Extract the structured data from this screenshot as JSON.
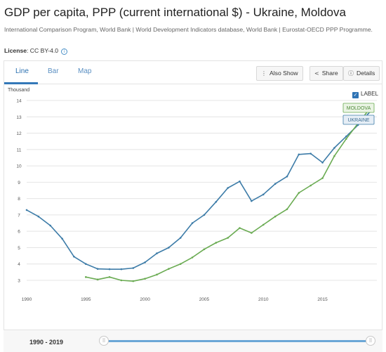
{
  "header": {
    "title": "GDP per capita, PPP (current international $) - Ukraine, Moldova",
    "source": "International Comparison Program, World Bank | World Development Indicators database, World Bank | Eurostat-OECD PPP Programme.",
    "license_label": "License",
    "license_value": ": CC BY-4.0",
    "info_icon": "i"
  },
  "tabs": [
    {
      "label": "Line",
      "active": true
    },
    {
      "label": "Bar",
      "active": false
    },
    {
      "label": "Map",
      "active": false
    }
  ],
  "toolbar": {
    "also_show": "Also Show",
    "also_show_icon": "⋮",
    "share": "Share",
    "share_icon": "<",
    "details": "Details",
    "details_icon": "ⓘ"
  },
  "chart_controls": {
    "units": "Thousand",
    "label_toggle": "LABEL",
    "label_checked": true,
    "check_icon": "✓"
  },
  "colors": {
    "ukraine": "#3d7ca8",
    "moldova": "#6aab52",
    "grid": "#e4e4e4",
    "accent": "#2f74b5"
  },
  "chart_data": {
    "type": "line",
    "xlabel": "",
    "ylabel": "Thousand",
    "xlim": [
      1990,
      2019
    ],
    "ylim": [
      2.5,
      14.2
    ],
    "yticks": [
      3,
      4,
      5,
      6,
      7,
      8,
      9,
      10,
      11,
      12,
      13,
      14
    ],
    "xticks": [
      1990,
      1995,
      2000,
      2005,
      2010,
      2015
    ],
    "grid": true,
    "series": [
      {
        "name": "UKRAINE",
        "color": "#3d7ca8",
        "x": [
          1990,
          1991,
          1992,
          1993,
          1994,
          1995,
          1996,
          1997,
          1998,
          1999,
          2000,
          2001,
          2002,
          2003,
          2004,
          2005,
          2006,
          2007,
          2008,
          2009,
          2010,
          2011,
          2012,
          2013,
          2014,
          2015,
          2016,
          2017,
          2018,
          2019
        ],
        "values": [
          7.3,
          6.9,
          6.35,
          5.55,
          4.45,
          4.0,
          3.7,
          3.68,
          3.68,
          3.75,
          4.1,
          4.65,
          5.0,
          5.6,
          6.5,
          7.0,
          7.8,
          8.65,
          9.05,
          7.85,
          8.25,
          8.9,
          9.35,
          10.7,
          10.75,
          10.2,
          11.1,
          11.8,
          12.5,
          13.3
        ]
      },
      {
        "name": "MOLDOVA",
        "color": "#6aab52",
        "x": [
          1995,
          1996,
          1997,
          1998,
          1999,
          2000,
          2001,
          2002,
          2003,
          2004,
          2005,
          2006,
          2007,
          2008,
          2009,
          2010,
          2011,
          2012,
          2013,
          2014,
          2015,
          2016,
          2017,
          2018,
          2019
        ],
        "values": [
          3.2,
          3.05,
          3.2,
          3.0,
          2.95,
          3.1,
          3.35,
          3.7,
          4.0,
          4.4,
          4.9,
          5.3,
          5.6,
          6.2,
          5.9,
          6.4,
          6.9,
          7.35,
          8.35,
          8.8,
          9.25,
          10.6,
          11.65,
          12.6,
          13.5
        ]
      }
    ],
    "data_labels": [
      "MOLDOVA",
      "UKRAINE"
    ]
  },
  "footer": {
    "range": "1990 - 2019",
    "handle_left": "||",
    "handle_right": "||"
  }
}
